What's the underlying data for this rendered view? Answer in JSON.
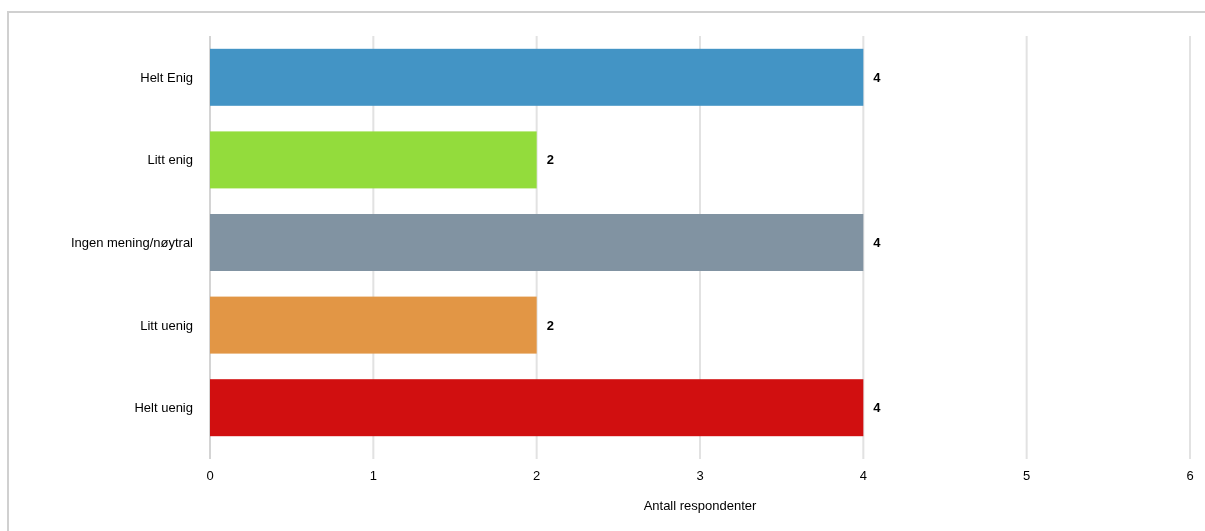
{
  "chart_data": {
    "type": "bar",
    "orientation": "horizontal",
    "categories": [
      "Helt Enig",
      "Litt enig",
      "Ingen mening/nøytral",
      "Litt uenig",
      "Helt uenig"
    ],
    "values": [
      4,
      2,
      4,
      2,
      4
    ],
    "colors": [
      "#4394c5",
      "#93dc3c",
      "#8193a2",
      "#e29645",
      "#d10f10"
    ],
    "xlabel": "Antall respondenter",
    "xlim": [
      0,
      6
    ],
    "xticks": [
      0,
      1,
      2,
      3,
      4,
      5,
      6
    ],
    "grid": "x",
    "data_labels": true
  }
}
